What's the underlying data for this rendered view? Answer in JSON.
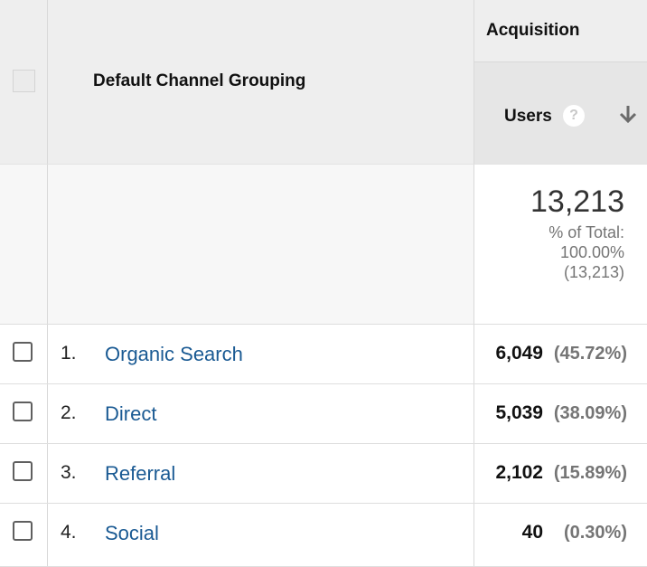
{
  "header": {
    "dimension_label": "Default Channel Grouping",
    "group_label": "Acquisition",
    "metric_label": "Users",
    "help_icon": "question-icon",
    "sort_icon": "arrow-down-icon"
  },
  "totals": {
    "value": "13,213",
    "pct_line1": "% of Total:",
    "pct_line2": "100.00%",
    "pct_line3": "(13,213)"
  },
  "rows": [
    {
      "index": "1.",
      "channel": "Organic Search",
      "users": "6,049",
      "pct": "(45.72%)"
    },
    {
      "index": "2.",
      "channel": "Direct",
      "users": "5,039",
      "pct": "(38.09%)"
    },
    {
      "index": "3.",
      "channel": "Referral",
      "users": "2,102",
      "pct": "(15.89%)"
    },
    {
      "index": "4.",
      "channel": "Social",
      "users": "40",
      "pct": "(0.30%)"
    }
  ],
  "colors": {
    "link": "#1a5a93",
    "header_bg": "#eeeeee",
    "muted_text": "#757575"
  }
}
